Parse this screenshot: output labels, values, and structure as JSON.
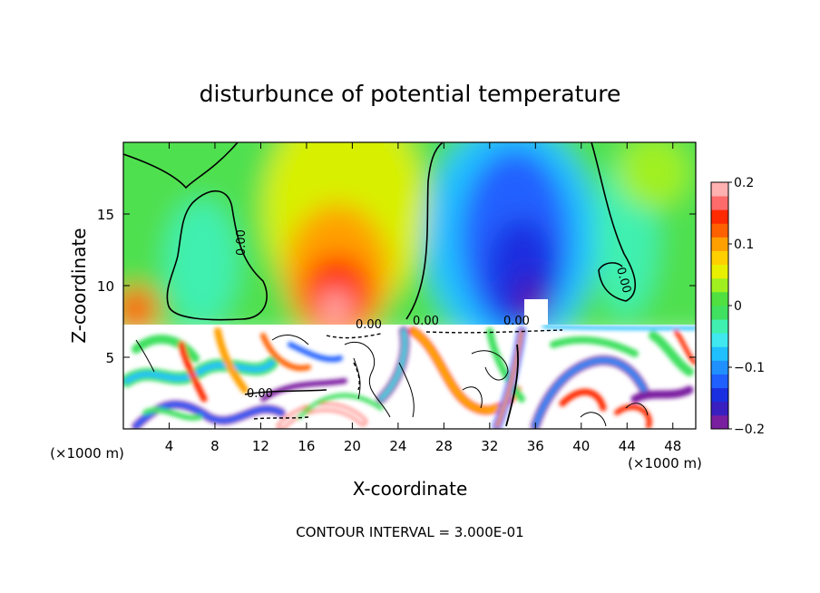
{
  "chart_data": {
    "type": "heatmap",
    "title": "disturbunce of potential temperature",
    "xlabel": "X-coordinate",
    "ylabel": "Z-coordinate",
    "x_unit": "(×1000 m)",
    "y_unit": "(×1000 m)",
    "xlim": [
      0,
      50
    ],
    "ylim": [
      0,
      20
    ],
    "x_ticks": [
      4,
      8,
      12,
      16,
      20,
      24,
      28,
      32,
      36,
      40,
      44,
      48
    ],
    "y_ticks": [
      5,
      10,
      15
    ],
    "colorbar": {
      "min": -0.2,
      "max": 0.2,
      "ticks": [
        0.2,
        0.1,
        0,
        -0.1,
        -0.2
      ],
      "tick_labels": [
        "0.2",
        "0.1",
        "0",
        "−0.1",
        "−0.2"
      ],
      "colors": [
        "#7a1fa0",
        "#3a1fc0",
        "#1a2fe0",
        "#2060ff",
        "#2090ff",
        "#20c0ff",
        "#40e8f0",
        "#40f0b0",
        "#40e060",
        "#50e040",
        "#a0f020",
        "#e8f000",
        "#ffd000",
        "#ffa000",
        "#ff6000",
        "#ff2a00",
        "#ff6a6a",
        "#ffb0b0"
      ]
    },
    "contour_labels": [
      "0.00",
      "0.00",
      "0.00",
      "0.00",
      "0.00",
      "0.00"
    ],
    "footer": "CONTOUR INTERVAL = 3.000E-01"
  }
}
